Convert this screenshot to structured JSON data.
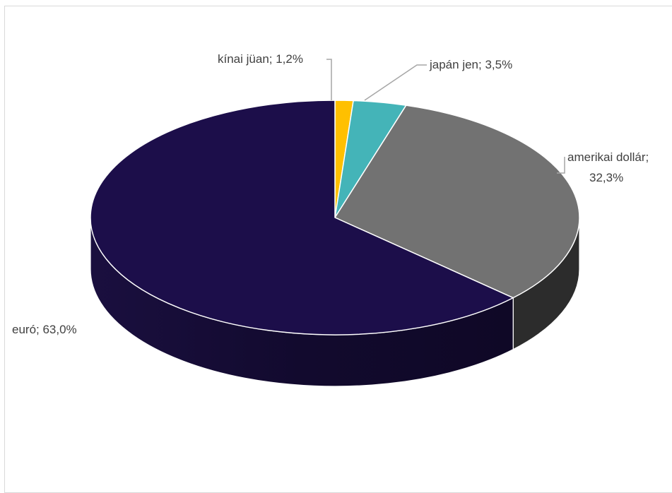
{
  "chart_data": {
    "type": "pie",
    "title": "",
    "slices": [
      {
        "category": "kínai jüan",
        "value": 1.2,
        "label": "kínai jüan; 1,2%",
        "color": "#FFC000",
        "side_color": "#B38600"
      },
      {
        "category": "japán jen",
        "value": 3.5,
        "label": "japán jen; 3,5%",
        "color": "#44B4B8",
        "side_color": "#2E7E81"
      },
      {
        "category": "amerikai dollár",
        "value": 32.3,
        "label_line1": "amerikai dollár;",
        "label_line2": "32,3%",
        "color": "#727272",
        "side_color": "#2C2C2C"
      },
      {
        "category": "euró",
        "value": 63.0,
        "label": "euró; 63,0%",
        "color": "#1C0E4A",
        "side_color": "#150B37"
      }
    ]
  }
}
